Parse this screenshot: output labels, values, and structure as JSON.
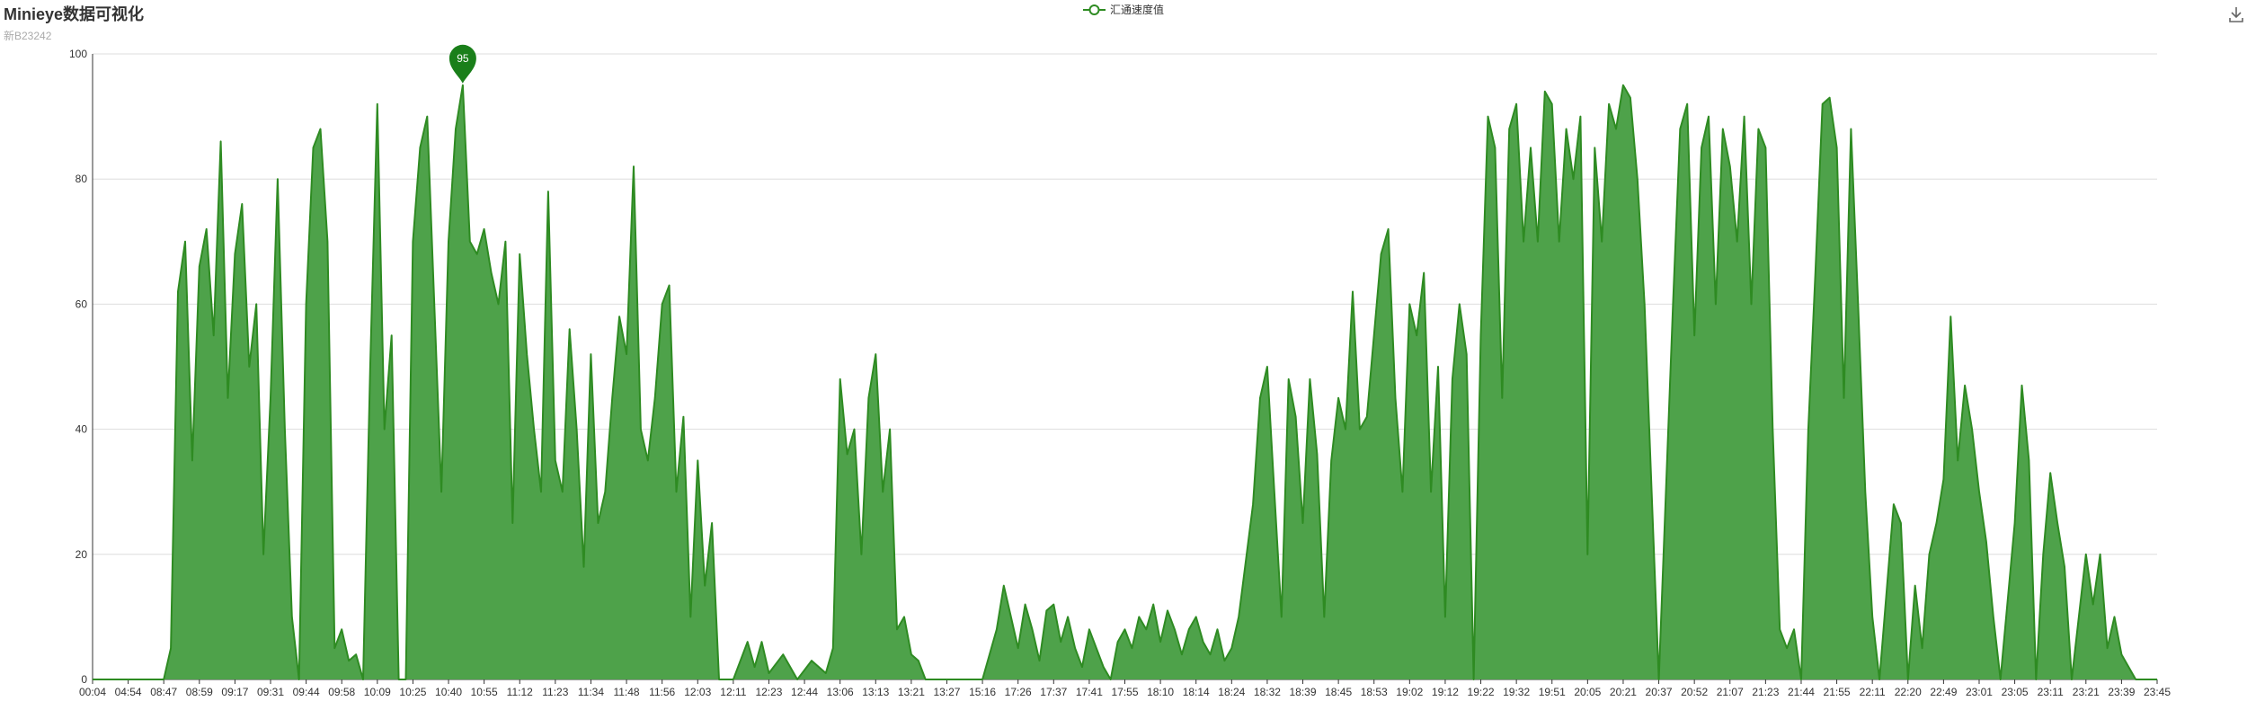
{
  "header": {
    "title": "Minieye数据可视化",
    "subtitle": "新B23242"
  },
  "toolbar": {
    "save_icon": "download-icon"
  },
  "chart_data": {
    "type": "area",
    "title": "Minieye数据可视化",
    "subtitle": "新B23242",
    "xlabel": "",
    "ylabel": "",
    "ylim": [
      0,
      100
    ],
    "y_ticks": [
      0,
      20,
      40,
      60,
      80,
      100
    ],
    "grid": true,
    "legend_position": "top-center",
    "color": "#2e8b22",
    "area_color": "#4ea24a",
    "x_tick_labels": [
      "00:04",
      "04:54",
      "08:47",
      "08:59",
      "09:17",
      "09:31",
      "09:44",
      "09:58",
      "10:09",
      "10:25",
      "10:40",
      "10:55",
      "11:12",
      "11:23",
      "11:34",
      "11:48",
      "11:56",
      "12:03",
      "12:11",
      "12:23",
      "12:44",
      "13:06",
      "13:13",
      "13:21",
      "13:27",
      "15:16",
      "17:26",
      "17:37",
      "17:41",
      "17:55",
      "18:10",
      "18:14",
      "18:24",
      "18:32",
      "18:39",
      "18:45",
      "18:53",
      "19:02",
      "19:12",
      "19:22",
      "19:32",
      "19:51",
      "20:05",
      "20:21",
      "20:37",
      "20:52",
      "21:07",
      "21:23",
      "21:44",
      "21:55",
      "22:11",
      "22:20",
      "22:49",
      "23:01",
      "23:05",
      "23:11",
      "23:21",
      "23:39",
      "23:45"
    ],
    "series": [
      {
        "name": "汇通速度值",
        "points": [
          [
            0,
            0
          ],
          [
            1,
            0
          ],
          [
            2,
            0
          ],
          [
            2.2,
            5
          ],
          [
            2.4,
            62
          ],
          [
            2.6,
            70
          ],
          [
            2.8,
            35
          ],
          [
            3.0,
            66
          ],
          [
            3.2,
            72
          ],
          [
            3.4,
            55
          ],
          [
            3.6,
            86
          ],
          [
            3.8,
            45
          ],
          [
            4.0,
            68
          ],
          [
            4.2,
            76
          ],
          [
            4.4,
            50
          ],
          [
            4.6,
            60
          ],
          [
            4.8,
            20
          ],
          [
            5.0,
            45
          ],
          [
            5.2,
            80
          ],
          [
            5.4,
            40
          ],
          [
            5.6,
            10
          ],
          [
            5.8,
            0
          ],
          [
            6.0,
            60
          ],
          [
            6.2,
            85
          ],
          [
            6.4,
            88
          ],
          [
            6.6,
            70
          ],
          [
            6.8,
            5
          ],
          [
            7.0,
            8
          ],
          [
            7.2,
            3
          ],
          [
            7.4,
            4
          ],
          [
            7.6,
            0
          ],
          [
            7.8,
            50
          ],
          [
            8.0,
            92
          ],
          [
            8.2,
            40
          ],
          [
            8.4,
            55
          ],
          [
            8.6,
            0
          ],
          [
            8.8,
            0
          ],
          [
            9.0,
            70
          ],
          [
            9.2,
            85
          ],
          [
            9.4,
            90
          ],
          [
            9.6,
            60
          ],
          [
            9.8,
            30
          ],
          [
            10.0,
            70
          ],
          [
            10.2,
            88
          ],
          [
            10.4,
            95
          ],
          [
            10.6,
            70
          ],
          [
            10.8,
            68
          ],
          [
            11.0,
            72
          ],
          [
            11.2,
            65
          ],
          [
            11.4,
            60
          ],
          [
            11.6,
            70
          ],
          [
            11.8,
            25
          ],
          [
            12.0,
            68
          ],
          [
            12.2,
            52
          ],
          [
            12.4,
            40
          ],
          [
            12.6,
            30
          ],
          [
            12.8,
            78
          ],
          [
            13.0,
            35
          ],
          [
            13.2,
            30
          ],
          [
            13.4,
            56
          ],
          [
            13.6,
            40
          ],
          [
            13.8,
            18
          ],
          [
            14.0,
            52
          ],
          [
            14.2,
            25
          ],
          [
            14.4,
            30
          ],
          [
            14.6,
            45
          ],
          [
            14.8,
            58
          ],
          [
            15.0,
            52
          ],
          [
            15.2,
            82
          ],
          [
            15.4,
            40
          ],
          [
            15.6,
            35
          ],
          [
            15.8,
            45
          ],
          [
            16.0,
            60
          ],
          [
            16.2,
            63
          ],
          [
            16.4,
            30
          ],
          [
            16.6,
            42
          ],
          [
            16.8,
            10
          ],
          [
            17.0,
            35
          ],
          [
            17.2,
            15
          ],
          [
            17.4,
            25
          ],
          [
            17.6,
            0
          ],
          [
            18.0,
            0
          ],
          [
            18.4,
            6
          ],
          [
            18.6,
            2
          ],
          [
            18.8,
            6
          ],
          [
            19.0,
            1
          ],
          [
            19.4,
            4
          ],
          [
            19.8,
            0
          ],
          [
            20.2,
            3
          ],
          [
            20.6,
            1
          ],
          [
            20.8,
            5
          ],
          [
            21.0,
            48
          ],
          [
            21.2,
            36
          ],
          [
            21.4,
            40
          ],
          [
            21.6,
            20
          ],
          [
            21.8,
            45
          ],
          [
            22.0,
            52
          ],
          [
            22.2,
            30
          ],
          [
            22.4,
            40
          ],
          [
            22.6,
            8
          ],
          [
            22.8,
            10
          ],
          [
            23.0,
            4
          ],
          [
            23.2,
            3
          ],
          [
            23.4,
            0
          ],
          [
            24.0,
            0
          ],
          [
            25.0,
            0
          ],
          [
            25.4,
            8
          ],
          [
            25.6,
            15
          ],
          [
            25.8,
            10
          ],
          [
            26.0,
            5
          ],
          [
            26.2,
            12
          ],
          [
            26.4,
            8
          ],
          [
            26.6,
            3
          ],
          [
            26.8,
            11
          ],
          [
            27.0,
            12
          ],
          [
            27.2,
            6
          ],
          [
            27.4,
            10
          ],
          [
            27.6,
            5
          ],
          [
            27.8,
            2
          ],
          [
            28.0,
            8
          ],
          [
            28.2,
            5
          ],
          [
            28.4,
            2
          ],
          [
            28.6,
            0
          ],
          [
            28.8,
            6
          ],
          [
            29.0,
            8
          ],
          [
            29.2,
            5
          ],
          [
            29.4,
            10
          ],
          [
            29.6,
            8
          ],
          [
            29.8,
            12
          ],
          [
            30.0,
            6
          ],
          [
            30.2,
            11
          ],
          [
            30.4,
            8
          ],
          [
            30.6,
            4
          ],
          [
            30.8,
            8
          ],
          [
            31.0,
            10
          ],
          [
            31.2,
            6
          ],
          [
            31.4,
            4
          ],
          [
            31.6,
            8
          ],
          [
            31.8,
            3
          ],
          [
            32.0,
            5
          ],
          [
            32.2,
            10
          ],
          [
            32.6,
            28
          ],
          [
            32.8,
            45
          ],
          [
            33.0,
            50
          ],
          [
            33.2,
            30
          ],
          [
            33.4,
            10
          ],
          [
            33.6,
            48
          ],
          [
            33.8,
            42
          ],
          [
            34.0,
            25
          ],
          [
            34.2,
            48
          ],
          [
            34.4,
            36
          ],
          [
            34.6,
            10
          ],
          [
            34.8,
            35
          ],
          [
            35.0,
            45
          ],
          [
            35.2,
            40
          ],
          [
            35.4,
            62
          ],
          [
            35.6,
            40
          ],
          [
            35.8,
            42
          ],
          [
            36.0,
            55
          ],
          [
            36.2,
            68
          ],
          [
            36.4,
            72
          ],
          [
            36.6,
            45
          ],
          [
            36.8,
            30
          ],
          [
            37.0,
            60
          ],
          [
            37.2,
            55
          ],
          [
            37.4,
            65
          ],
          [
            37.6,
            30
          ],
          [
            37.8,
            50
          ],
          [
            38.0,
            10
          ],
          [
            38.2,
            48
          ],
          [
            38.4,
            60
          ],
          [
            38.6,
            52
          ],
          [
            38.8,
            0
          ],
          [
            39.0,
            55
          ],
          [
            39.2,
            90
          ],
          [
            39.4,
            85
          ],
          [
            39.6,
            45
          ],
          [
            39.8,
            88
          ],
          [
            40.0,
            92
          ],
          [
            40.2,
            70
          ],
          [
            40.4,
            85
          ],
          [
            40.6,
            70
          ],
          [
            40.8,
            94
          ],
          [
            41.0,
            92
          ],
          [
            41.2,
            70
          ],
          [
            41.4,
            88
          ],
          [
            41.6,
            80
          ],
          [
            41.8,
            90
          ],
          [
            42.0,
            20
          ],
          [
            42.2,
            85
          ],
          [
            42.4,
            70
          ],
          [
            42.6,
            92
          ],
          [
            42.8,
            88
          ],
          [
            43.0,
            95
          ],
          [
            43.2,
            93
          ],
          [
            43.4,
            80
          ],
          [
            43.6,
            60
          ],
          [
            43.8,
            30
          ],
          [
            44.0,
            0
          ],
          [
            44.4,
            60
          ],
          [
            44.6,
            88
          ],
          [
            44.8,
            92
          ],
          [
            45.0,
            55
          ],
          [
            45.2,
            85
          ],
          [
            45.4,
            90
          ],
          [
            45.6,
            60
          ],
          [
            45.8,
            88
          ],
          [
            46.0,
            82
          ],
          [
            46.2,
            70
          ],
          [
            46.4,
            90
          ],
          [
            46.6,
            60
          ],
          [
            46.8,
            88
          ],
          [
            47.0,
            85
          ],
          [
            47.2,
            40
          ],
          [
            47.4,
            8
          ],
          [
            47.6,
            5
          ],
          [
            47.8,
            8
          ],
          [
            48.0,
            0
          ],
          [
            48.2,
            40
          ],
          [
            48.4,
            65
          ],
          [
            48.6,
            92
          ],
          [
            48.8,
            93
          ],
          [
            49.0,
            85
          ],
          [
            49.2,
            45
          ],
          [
            49.4,
            88
          ],
          [
            49.6,
            60
          ],
          [
            49.8,
            30
          ],
          [
            50.0,
            10
          ],
          [
            50.2,
            0
          ],
          [
            50.6,
            28
          ],
          [
            50.8,
            25
          ],
          [
            51.0,
            0
          ],
          [
            51.2,
            15
          ],
          [
            51.4,
            5
          ],
          [
            51.6,
            20
          ],
          [
            51.8,
            25
          ],
          [
            52.0,
            32
          ],
          [
            52.2,
            58
          ],
          [
            52.4,
            35
          ],
          [
            52.6,
            47
          ],
          [
            52.8,
            40
          ],
          [
            53.0,
            30
          ],
          [
            53.2,
            22
          ],
          [
            53.4,
            10
          ],
          [
            53.6,
            0
          ],
          [
            54.0,
            25
          ],
          [
            54.2,
            47
          ],
          [
            54.4,
            35
          ],
          [
            54.6,
            0
          ],
          [
            54.8,
            20
          ],
          [
            55.0,
            33
          ],
          [
            55.2,
            25
          ],
          [
            55.4,
            18
          ],
          [
            55.6,
            0
          ],
          [
            55.8,
            10
          ],
          [
            56.0,
            20
          ],
          [
            56.2,
            12
          ],
          [
            56.4,
            20
          ],
          [
            56.6,
            5
          ],
          [
            56.8,
            10
          ],
          [
            57.0,
            4
          ],
          [
            57.2,
            2
          ],
          [
            57.4,
            0
          ],
          [
            58.0,
            0
          ]
        ]
      }
    ],
    "annotations": [
      {
        "type": "max-pin",
        "label": "95"
      }
    ]
  }
}
